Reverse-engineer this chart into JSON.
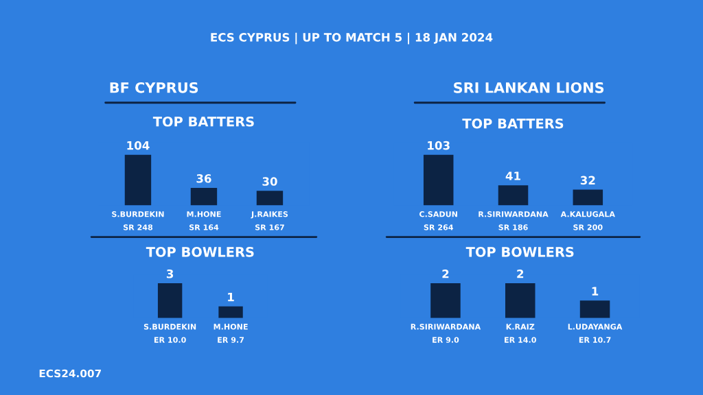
{
  "chart_data": [
    {
      "type": "bar",
      "title": "TOP BATTERS",
      "subtitle": "BF CYPRUS",
      "categories": [
        "S.BURDEKIN\nSR 248",
        "M.HONE\nSR 164",
        "J.RAIKES\nSR 167"
      ],
      "values": [
        104,
        36,
        30
      ],
      "color": "#0c2344",
      "data_labels": true,
      "annotations": [
        "ECS CYPRUS | UP TO MATCH 5 | 18 JAN 2024",
        "ECS24.007"
      ]
    },
    {
      "type": "bar",
      "title": "TOP BATTERS",
      "subtitle": "SRI LANKAN LIONS",
      "categories": [
        "C.SADUN\nSR 264",
        "R.SIRIWARDANA\nSR 186",
        "A.KALUGALA\nSR 200"
      ],
      "values": [
        103,
        41,
        32
      ],
      "color": "#0c2344",
      "data_labels": true
    },
    {
      "type": "bar",
      "title": "TOP BOWLERS",
      "categories": [
        "S.BURDEKIN\nER 10.0",
        "M.HONE\nER 9.7"
      ],
      "values": [
        3,
        1
      ],
      "color": "#0c2344",
      "data_labels": true
    },
    {
      "type": "bar",
      "title": "TOP BOWLERS",
      "categories": [
        "R.SIRIWARDANA\nER 9.0",
        "K.RAIZ\nER 14.0",
        "L.UDAYANGA\nER 10.7"
      ],
      "values": [
        2,
        2,
        1
      ],
      "color": "#0c2344",
      "data_labels": true
    }
  ]
}
